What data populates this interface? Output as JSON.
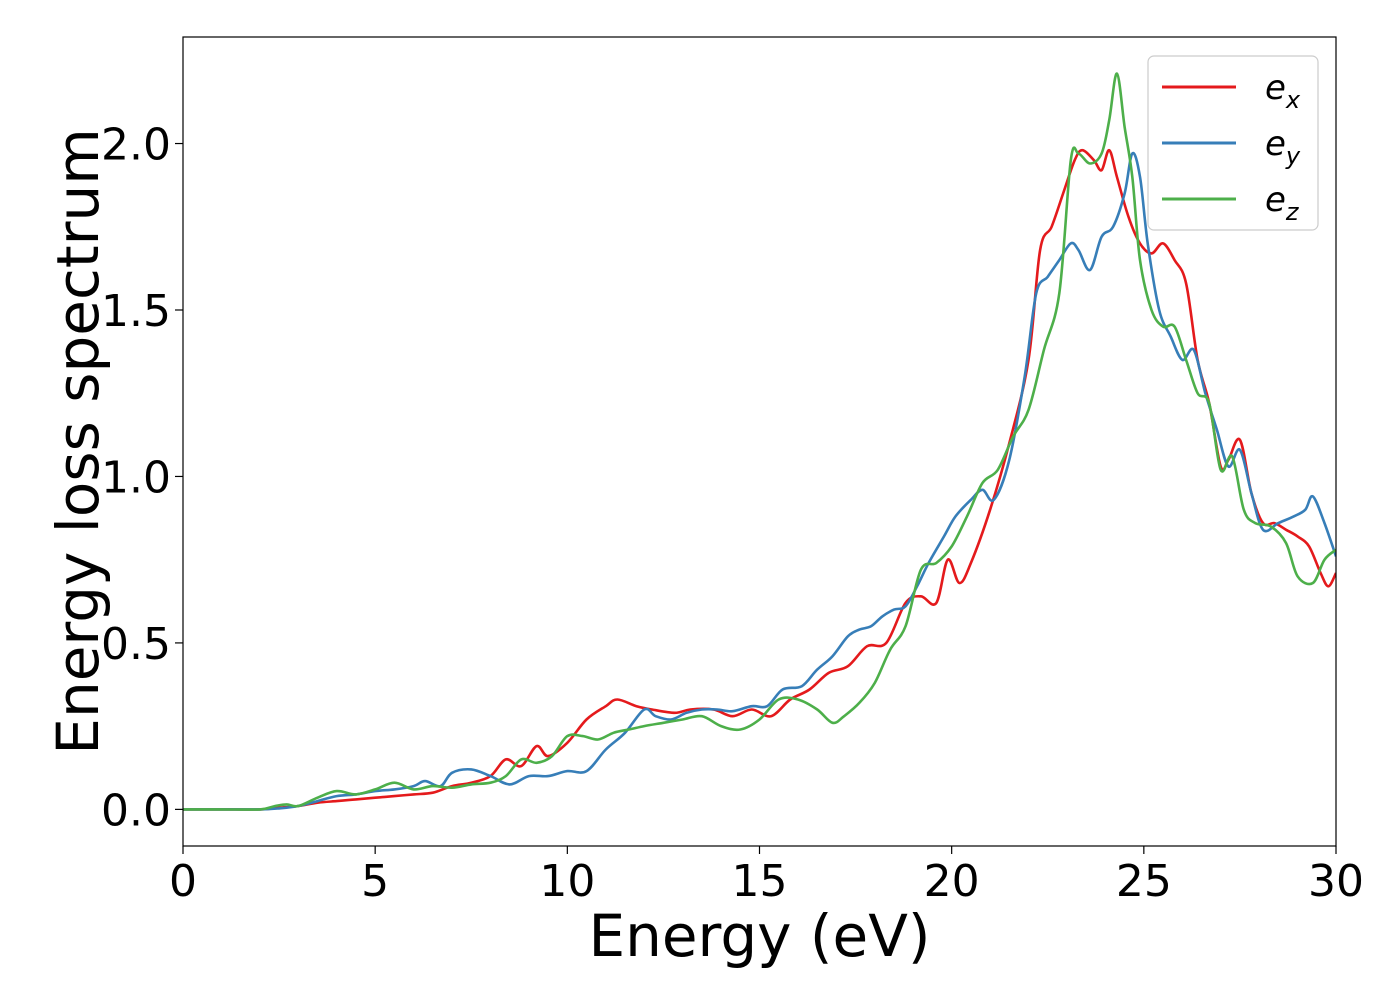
{
  "chart_data": {
    "type": "line",
    "title": "",
    "xlabel": "Energy (eV)",
    "ylabel": "Energy loss spectrum",
    "xlim": [
      0,
      30
    ],
    "ylim": [
      -0.11,
      2.32
    ],
    "xticks": [
      0,
      5,
      10,
      15,
      20,
      25,
      30
    ],
    "yticks": [
      0.0,
      0.5,
      1.0,
      1.5,
      2.0
    ],
    "xtick_labels": [
      "0",
      "5",
      "10",
      "15",
      "20",
      "25",
      "30"
    ],
    "ytick_labels": [
      "0.0",
      "0.5",
      "1.0",
      "1.5",
      "2.0"
    ],
    "grid": false,
    "legend_position": "top-right",
    "series": [
      {
        "name": "e",
        "subscript": "x",
        "color": "#e41a1c",
        "x": [
          0,
          1,
          2,
          2.5,
          3,
          3.5,
          4,
          4.5,
          5,
          5.5,
          6,
          6.5,
          7,
          7.5,
          8,
          8.4,
          8.8,
          9.2,
          9.5,
          10,
          10.5,
          11,
          11.3,
          11.8,
          12.2,
          12.8,
          13.2,
          13.8,
          14.3,
          14.8,
          15.3,
          15.8,
          16.3,
          16.8,
          17.3,
          17.8,
          18.3,
          18.8,
          19.2,
          19.6,
          19.9,
          20.2,
          20.5,
          21,
          21.5,
          22,
          22.3,
          22.6,
          22.9,
          23.2,
          23.4,
          23.7,
          23.9,
          24.1,
          24.3,
          24.6,
          24.9,
          25.2,
          25.5,
          25.8,
          26.1,
          26.4,
          26.7,
          27.0,
          27.2,
          27.5,
          27.8,
          28.1,
          28.4,
          28.7,
          29.0,
          29.3,
          29.6,
          29.8,
          30
        ],
        "y": [
          0.0,
          0.0,
          0.0,
          0.005,
          0.01,
          0.02,
          0.025,
          0.03,
          0.035,
          0.04,
          0.045,
          0.05,
          0.07,
          0.08,
          0.1,
          0.15,
          0.13,
          0.19,
          0.16,
          0.2,
          0.27,
          0.31,
          0.33,
          0.31,
          0.3,
          0.29,
          0.3,
          0.3,
          0.28,
          0.3,
          0.28,
          0.33,
          0.36,
          0.41,
          0.43,
          0.49,
          0.5,
          0.62,
          0.64,
          0.62,
          0.75,
          0.68,
          0.74,
          0.9,
          1.1,
          1.35,
          1.68,
          1.75,
          1.85,
          1.95,
          1.98,
          1.95,
          1.92,
          1.98,
          1.9,
          1.78,
          1.7,
          1.67,
          1.7,
          1.65,
          1.58,
          1.35,
          1.22,
          1.03,
          1.05,
          1.11,
          0.95,
          0.86,
          0.86,
          0.84,
          0.82,
          0.79,
          0.71,
          0.67,
          0.71
        ]
      },
      {
        "name": "e",
        "subscript": "y",
        "color": "#377eb8",
        "x": [
          0,
          1,
          2,
          2.5,
          3,
          3.5,
          4,
          4.5,
          5,
          5.5,
          6,
          6.3,
          6.7,
          7,
          7.5,
          8,
          8.5,
          9,
          9.5,
          10,
          10.5,
          11,
          11.5,
          12,
          12.3,
          12.7,
          13.1,
          13.5,
          13.9,
          14.3,
          14.8,
          15.2,
          15.6,
          16.1,
          16.5,
          16.9,
          17.3,
          17.6,
          17.9,
          18.2,
          18.5,
          18.8,
          19.1,
          19.4,
          19.8,
          20.1,
          20.5,
          20.8,
          21.1,
          21.5,
          21.9,
          22.2,
          22.5,
          22.8,
          23.1,
          23.3,
          23.6,
          23.9,
          24.2,
          24.5,
          24.7,
          24.9,
          25.1,
          25.4,
          25.7,
          26.0,
          26.3,
          26.6,
          26.9,
          27.2,
          27.5,
          27.8,
          28.1,
          28.5,
          28.9,
          29.2,
          29.4,
          29.7,
          30
        ],
        "y": [
          0.0,
          0.0,
          0.0,
          0.003,
          0.01,
          0.025,
          0.04,
          0.045,
          0.055,
          0.06,
          0.07,
          0.085,
          0.07,
          0.11,
          0.12,
          0.1,
          0.075,
          0.1,
          0.1,
          0.115,
          0.115,
          0.18,
          0.23,
          0.3,
          0.28,
          0.27,
          0.29,
          0.3,
          0.3,
          0.295,
          0.31,
          0.31,
          0.36,
          0.37,
          0.42,
          0.46,
          0.52,
          0.54,
          0.55,
          0.58,
          0.6,
          0.61,
          0.67,
          0.74,
          0.82,
          0.88,
          0.93,
          0.96,
          0.93,
          1.05,
          1.3,
          1.55,
          1.6,
          1.65,
          1.7,
          1.68,
          1.62,
          1.72,
          1.75,
          1.85,
          1.97,
          1.9,
          1.7,
          1.5,
          1.42,
          1.35,
          1.38,
          1.25,
          1.14,
          1.03,
          1.08,
          0.95,
          0.84,
          0.86,
          0.88,
          0.9,
          0.94,
          0.86,
          0.76
        ]
      },
      {
        "name": "e",
        "subscript": "z",
        "color": "#4daf4a",
        "x": [
          0,
          1,
          2,
          2.4,
          2.7,
          3,
          3.5,
          4,
          4.5,
          5,
          5.5,
          6,
          6.5,
          7,
          7.5,
          8,
          8.4,
          8.8,
          9.2,
          9.6,
          10,
          10.4,
          10.8,
          11.2,
          11.6,
          12,
          12.5,
          13,
          13.5,
          14,
          14.5,
          15,
          15.5,
          16,
          16.5,
          16.9,
          17.2,
          17.6,
          18,
          18.4,
          18.8,
          19.2,
          19.6,
          20,
          20.4,
          20.8,
          21.2,
          21.6,
          22,
          22.4,
          22.8,
          23.1,
          23.3,
          23.6,
          23.9,
          24.1,
          24.3,
          24.5,
          24.7,
          24.9,
          25.2,
          25.5,
          25.8,
          26.1,
          26.4,
          26.7,
          27.0,
          27.3,
          27.6,
          27.9,
          28.3,
          28.7,
          29.0,
          29.4,
          29.7,
          30
        ],
        "y": [
          0.0,
          0.0,
          0.0,
          0.01,
          0.015,
          0.01,
          0.035,
          0.055,
          0.045,
          0.06,
          0.08,
          0.06,
          0.07,
          0.065,
          0.075,
          0.08,
          0.1,
          0.15,
          0.14,
          0.16,
          0.22,
          0.22,
          0.21,
          0.23,
          0.24,
          0.25,
          0.26,
          0.27,
          0.28,
          0.25,
          0.24,
          0.27,
          0.33,
          0.33,
          0.3,
          0.26,
          0.28,
          0.32,
          0.38,
          0.48,
          0.55,
          0.72,
          0.74,
          0.79,
          0.88,
          0.98,
          1.02,
          1.12,
          1.2,
          1.38,
          1.55,
          1.95,
          1.97,
          1.94,
          1.97,
          2.07,
          2.21,
          2.05,
          1.9,
          1.65,
          1.5,
          1.45,
          1.45,
          1.35,
          1.25,
          1.22,
          1.02,
          1.06,
          0.9,
          0.86,
          0.85,
          0.8,
          0.7,
          0.68,
          0.75,
          0.78
        ]
      }
    ]
  }
}
